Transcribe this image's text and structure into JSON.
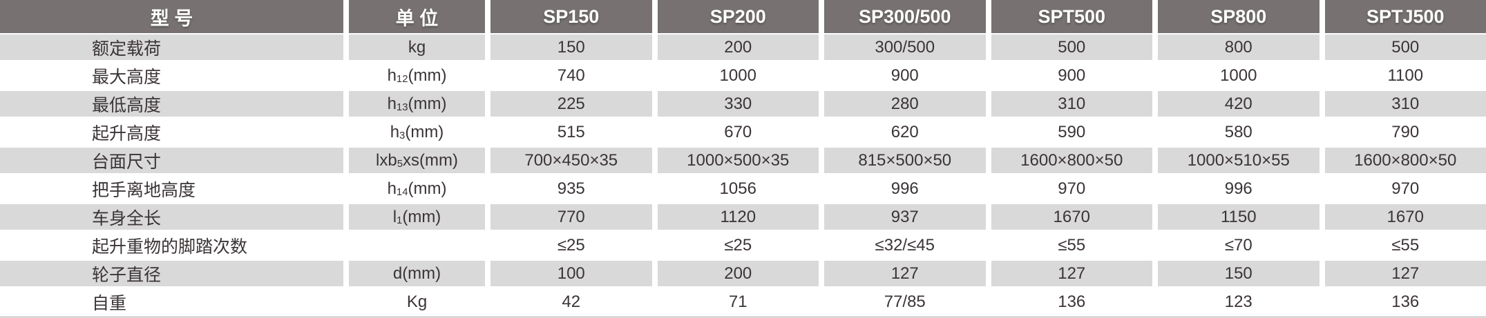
{
  "colors": {
    "header_bg": "#777171",
    "header_text": "#ffffff",
    "alt_row_bg": "#d9d9d9",
    "body_text": "#3b3435"
  },
  "table": {
    "columns": [
      "型 号",
      "单 位",
      "SP150",
      "SP200",
      "SP300/500",
      "SPT500",
      "SP800",
      "SPTJ500"
    ],
    "rows": [
      {
        "label": "额定载荷",
        "unit": {
          "pre": "kg",
          "sub": "",
          "post": ""
        },
        "values": [
          "150",
          "200",
          "300/500",
          "500",
          "800",
          "500"
        ]
      },
      {
        "label": "最大高度",
        "unit": {
          "pre": "h",
          "sub": "12",
          "post": "(mm)"
        },
        "values": [
          "740",
          "1000",
          "900",
          "900",
          "1000",
          "1100"
        ]
      },
      {
        "label": "最低高度",
        "unit": {
          "pre": "h",
          "sub": "13",
          "post": "(mm)"
        },
        "values": [
          "225",
          "330",
          "280",
          "310",
          "420",
          "310"
        ]
      },
      {
        "label": "起升高度",
        "unit": {
          "pre": "h",
          "sub": "3",
          "post": "(mm)"
        },
        "values": [
          "515",
          "670",
          "620",
          "590",
          "580",
          "790"
        ]
      },
      {
        "label": "台面尺寸",
        "unit": {
          "pre": "lxb",
          "sub": "5",
          "post": "xs(mm)"
        },
        "values": [
          "700×450×35",
          "1000×500×35",
          "815×500×50",
          "1600×800×50",
          "1000×510×55",
          "1600×800×50"
        ]
      },
      {
        "label": "把手离地高度",
        "unit": {
          "pre": "h",
          "sub": "14",
          "post": "(mm)"
        },
        "values": [
          "935",
          "1056",
          "996",
          "970",
          "996",
          "970"
        ]
      },
      {
        "label": "车身全长",
        "unit": {
          "pre": "l",
          "sub": "1",
          "post": "(mm)"
        },
        "values": [
          "770",
          "1120",
          "937",
          "1670",
          "1150",
          "1670"
        ]
      },
      {
        "label": "起升重物的脚踏次数",
        "unit": {
          "pre": "",
          "sub": "",
          "post": ""
        },
        "values": [
          "≤25",
          "≤25",
          "≤32/≤45",
          "≤55",
          "≤70",
          "≤55"
        ]
      },
      {
        "label": "轮子直径",
        "unit": {
          "pre": "d",
          "sub": "",
          "post": "(mm)"
        },
        "values": [
          "100",
          "200",
          "127",
          "127",
          "150",
          "127"
        ]
      },
      {
        "label": "自重",
        "unit": {
          "pre": "Kg",
          "sub": "",
          "post": ""
        },
        "values": [
          "42",
          "71",
          "77/85",
          "136",
          "123",
          "136"
        ]
      }
    ]
  }
}
